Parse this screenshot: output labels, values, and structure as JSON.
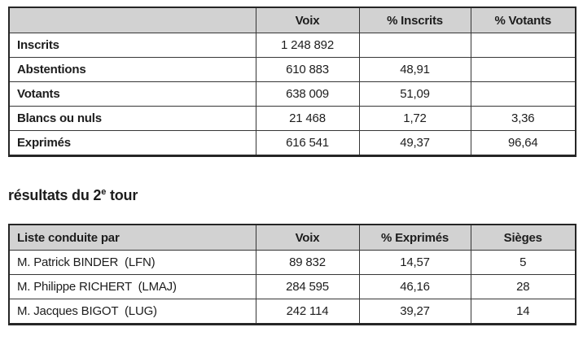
{
  "page": {
    "background": "#ffffff",
    "text_color": "#1d1d1d",
    "header_bg": "#d2d2d2",
    "border_color": "#363636"
  },
  "summary_table": {
    "columns": [
      "",
      "Voix",
      "% Inscrits",
      "% Votants"
    ],
    "rows": [
      {
        "label": "Inscrits",
        "voix": "1 248 892",
        "pct_inscrits": "",
        "pct_votants": ""
      },
      {
        "label": "Abstentions",
        "voix": "610 883",
        "pct_inscrits": "48,91",
        "pct_votants": ""
      },
      {
        "label": "Votants",
        "voix": "638 009",
        "pct_inscrits": "51,09",
        "pct_votants": ""
      },
      {
        "label": "Blancs ou nuls",
        "voix": "21 468",
        "pct_inscrits": "1,72",
        "pct_votants": "3,36"
      },
      {
        "label": "Exprimés",
        "voix": "616 541",
        "pct_inscrits": "49,37",
        "pct_votants": "96,64"
      }
    ]
  },
  "heading": {
    "prefix": "résultats du 2",
    "superscript": "e",
    "suffix": " tour"
  },
  "results_table": {
    "columns": [
      "Liste conduite par",
      "Voix",
      "% Exprimés",
      "Sièges"
    ],
    "rows": [
      {
        "label": "M. Patrick BINDER  (LFN)",
        "voix": "89 832",
        "pct_exprimes": "14,57",
        "sieges": "5"
      },
      {
        "label": "M. Philippe RICHERT  (LMAJ)",
        "voix": "284 595",
        "pct_exprimes": "46,16",
        "sieges": "28"
      },
      {
        "label": "M. Jacques BIGOT  (LUG)",
        "voix": "242 114",
        "pct_exprimes": "39,27",
        "sieges": "14"
      }
    ]
  }
}
